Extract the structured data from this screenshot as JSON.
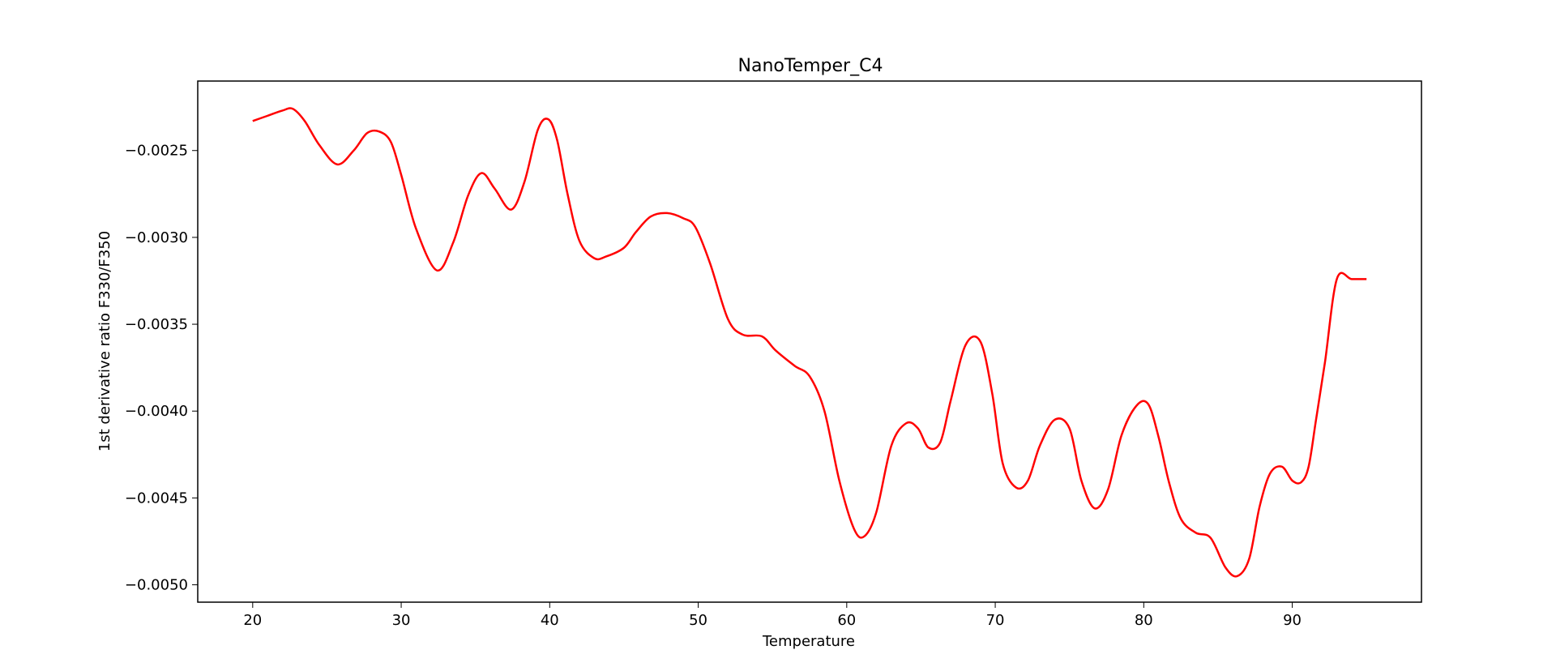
{
  "chart_data": {
    "type": "line",
    "title": "NanoTemper_C4",
    "xlabel": "Temperature",
    "ylabel": "1st derivative ratio F330/F350",
    "xlim": [
      16.3,
      98.7
    ],
    "ylim": [
      -0.0051,
      -0.0021
    ],
    "xticks": [
      20,
      30,
      40,
      50,
      60,
      70,
      80,
      90
    ],
    "xtick_labels": [
      "20",
      "30",
      "40",
      "50",
      "60",
      "70",
      "80",
      "90"
    ],
    "yticks": [
      -0.0025,
      -0.003,
      -0.0035,
      -0.004,
      -0.0045,
      -0.005
    ],
    "ytick_labels": [
      "−0.0025",
      "−0.0030",
      "−0.0035",
      "−0.0040",
      "−0.0045",
      "−0.0050"
    ],
    "grid": false,
    "series": [
      {
        "color": "#ff0000",
        "x": [
          20,
          21,
          22,
          22.7,
          23.5,
          24.5,
          25.7,
          26.8,
          27.7,
          28.5,
          29.3,
          30,
          31,
          32.4,
          33.5,
          34.5,
          35.4,
          36.3,
          37.4,
          38.3,
          39.2,
          39.9,
          40.5,
          41.2,
          42,
          43,
          43.8,
          45,
          45.8,
          46.8,
          47.9,
          49,
          49.8,
          50.8,
          52,
          53,
          54.3,
          55.2,
          56.5,
          57.5,
          58.5,
          59.5,
          60.5,
          61.2,
          62,
          63,
          64,
          64.8,
          65.5,
          66.3,
          67,
          68,
          69,
          69.8,
          70.5,
          71.4,
          72.2,
          73,
          74,
          75,
          75.8,
          76.7,
          77.6,
          78.5,
          79.5,
          80.3,
          81,
          81.7,
          82.5,
          83.5,
          84.5,
          85.5,
          86.3,
          87.1,
          87.8,
          88.5,
          89.3,
          90,
          90.6,
          91.1,
          91.6,
          92.2,
          93,
          94,
          95
        ],
        "y": [
          -0.00233,
          -0.0023,
          -0.00227,
          -0.00226,
          -0.00233,
          -0.00247,
          -0.00258,
          -0.0025,
          -0.0024,
          -0.00239,
          -0.00245,
          -0.00264,
          -0.00295,
          -0.00319,
          -0.00303,
          -0.00276,
          -0.00263,
          -0.00272,
          -0.00284,
          -0.00268,
          -0.00238,
          -0.00232,
          -0.00244,
          -0.00275,
          -0.00302,
          -0.00312,
          -0.00311,
          -0.00306,
          -0.00297,
          -0.00288,
          -0.00286,
          -0.00289,
          -0.00294,
          -0.00315,
          -0.00347,
          -0.00356,
          -0.00357,
          -0.00365,
          -0.00374,
          -0.0038,
          -0.004,
          -0.0044,
          -0.00468,
          -0.00472,
          -0.00458,
          -0.0042,
          -0.00407,
          -0.0041,
          -0.00421,
          -0.00418,
          -0.00394,
          -0.00362,
          -0.0036,
          -0.0039,
          -0.0043,
          -0.00444,
          -0.0044,
          -0.0042,
          -0.00405,
          -0.0041,
          -0.0044,
          -0.00456,
          -0.00445,
          -0.00414,
          -0.00397,
          -0.00396,
          -0.00415,
          -0.00441,
          -0.00462,
          -0.0047,
          -0.00473,
          -0.0049,
          -0.00495,
          -0.00485,
          -0.00455,
          -0.00436,
          -0.00432,
          -0.0044,
          -0.00441,
          -0.00432,
          -0.00405,
          -0.00372,
          -0.00324,
          -0.00324,
          -0.00324
        ]
      }
    ]
  }
}
